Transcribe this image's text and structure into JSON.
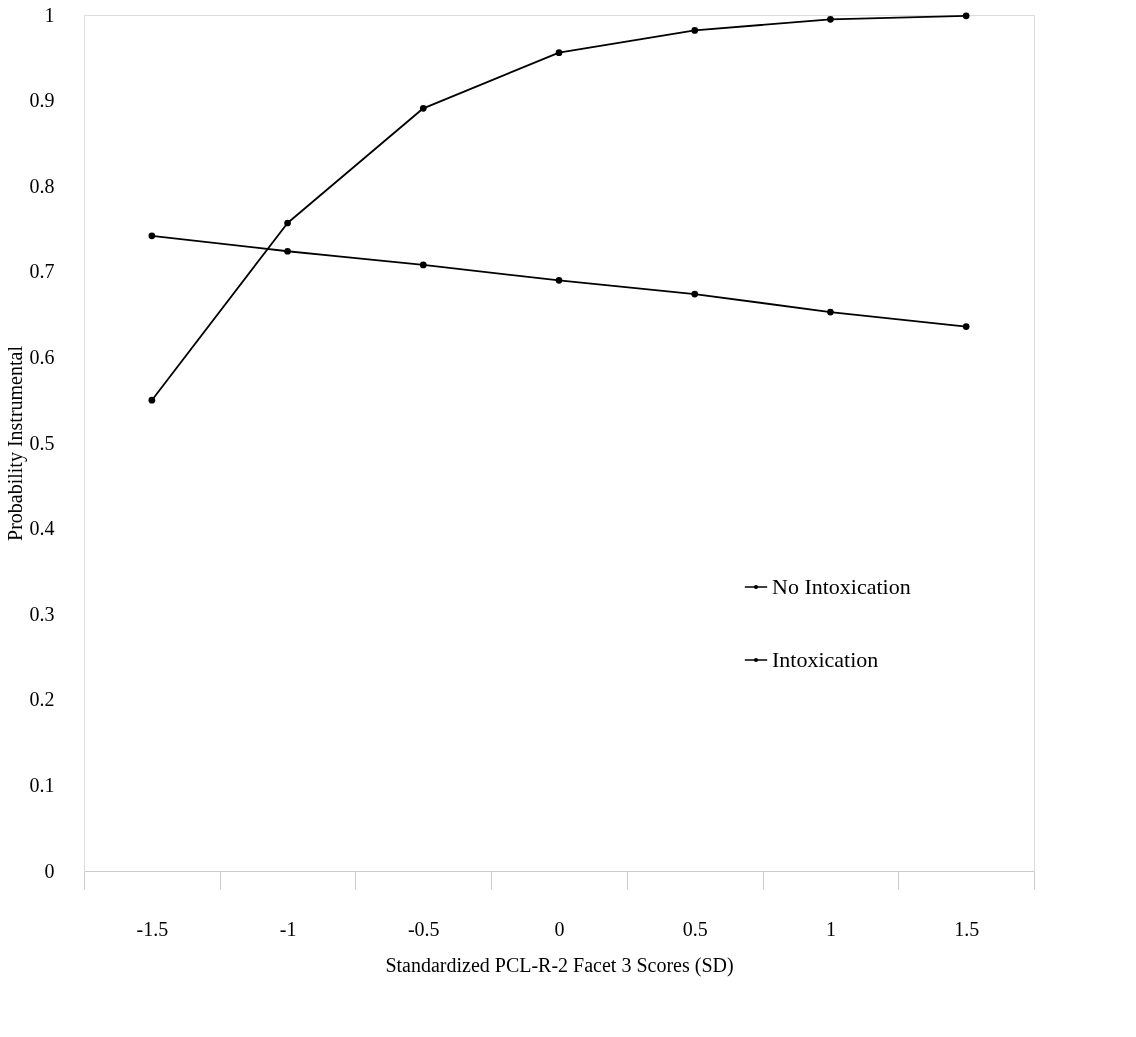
{
  "chart_data": {
    "type": "line",
    "xlabel": "Standardized PCL-R-2 Facet 3 Scores (SD)",
    "ylabel": "Probability Instrumental",
    "categories": [
      "-1.5",
      "-1",
      "-0.5",
      "0",
      "0.5",
      "1",
      "1.5"
    ],
    "series": [
      {
        "name": "No Intoxication",
        "color": "#000000",
        "values": [
          0.55,
          0.757,
          0.891,
          0.956,
          0.982,
          0.995,
          0.999
        ]
      },
      {
        "name": "Intoxication",
        "color": "#000000",
        "values": [
          0.742,
          0.724,
          0.708,
          0.69,
          0.674,
          0.653,
          0.636
        ]
      }
    ],
    "ylim": [
      0,
      1
    ],
    "yticks": [
      0,
      0.1,
      0.2,
      0.3,
      0.4,
      0.5,
      0.6,
      0.7,
      0.8,
      0.9,
      1
    ],
    "marker": "circle",
    "line_style": "solid",
    "grid": false,
    "legend": "right"
  }
}
